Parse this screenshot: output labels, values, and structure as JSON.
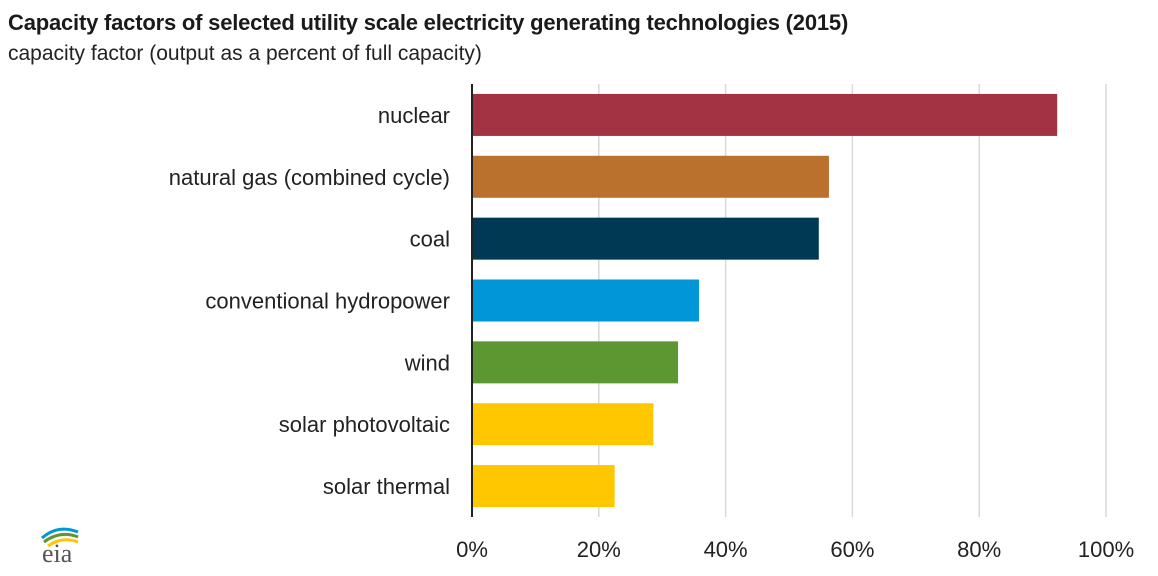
{
  "chart_data": {
    "type": "bar",
    "orientation": "horizontal",
    "title": "Capacity factors of selected utility scale electricity generating technologies (2015)",
    "subtitle": "capacity factor (output as a percent of full capacity)",
    "categories": [
      "nuclear",
      "natural gas (combined cycle)",
      "coal",
      "conventional hydropower",
      "wind",
      "solar photovoltaic",
      "solar thermal"
    ],
    "values": [
      92.3,
      56.3,
      54.7,
      35.8,
      32.5,
      28.6,
      22.5
    ],
    "colors": [
      "#a33343",
      "#bb712e",
      "#003953",
      "#0096d7",
      "#5d9732",
      "#ffc700",
      "#ffc700"
    ],
    "xlim": [
      0,
      100
    ],
    "xticks": [
      0,
      20,
      40,
      60,
      80,
      100
    ],
    "xtick_labels": [
      "0%",
      "20%",
      "40%",
      "60%",
      "80%",
      "100%"
    ],
    "grid": "vertical",
    "legend": "none"
  },
  "logo": {
    "text": "eia",
    "icon": "eia-logo-icon"
  }
}
